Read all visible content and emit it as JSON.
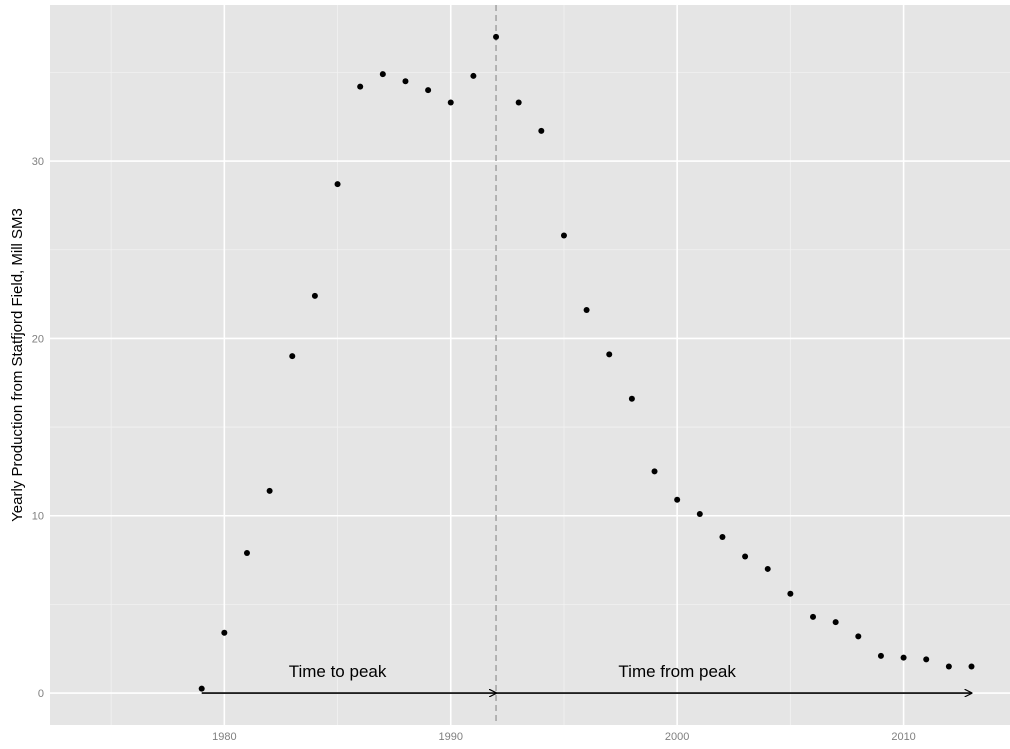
{
  "chart_data": {
    "type": "scatter",
    "title": "",
    "xlabel": "",
    "ylabel": "Yearly Production from Statfjord Field, Mill SM3",
    "xlim": [
      1972.3,
      2014.7
    ],
    "ylim": [
      -1.8,
      38.8
    ],
    "xticks": [
      1980,
      1990,
      2000,
      2010
    ],
    "xtick_labels": [
      "1980",
      "1990",
      "2000",
      "2010"
    ],
    "yticks": [
      0,
      10,
      20,
      30
    ],
    "ytick_labels": [
      "0",
      "10",
      "20",
      "30"
    ],
    "grid": true,
    "legend": "none",
    "series": [
      {
        "x": [
          1979,
          1980,
          1981,
          1982,
          1983,
          1984,
          1985,
          1986,
          1987,
          1988,
          1989,
          1990,
          1991,
          1992,
          1993,
          1994,
          1995,
          1996,
          1997,
          1998,
          1999,
          2000,
          2001,
          2002,
          2003,
          2004,
          2005,
          2006,
          2007,
          2008,
          2009,
          2010,
          2011,
          2012,
          2013
        ],
        "y": [
          0.25,
          3.4,
          7.9,
          11.4,
          19.0,
          22.4,
          28.7,
          34.2,
          34.9,
          34.5,
          34.0,
          33.3,
          34.8,
          37.0,
          33.3,
          31.7,
          25.8,
          21.6,
          19.1,
          16.6,
          12.5,
          10.9,
          10.1,
          8.8,
          7.7,
          7.0,
          5.6,
          4.3,
          4.0,
          3.2,
          2.1,
          2.0,
          1.9,
          1.5,
          1.5
        ]
      }
    ],
    "peak_line": {
      "x": 1992
    },
    "annotations": [
      {
        "text": "Time to peak",
        "x": 1985,
        "y": 0.9,
        "arrow_from": 1979,
        "arrow_to": 1992,
        "arrow_y": 0
      },
      {
        "text": "Time from peak",
        "x": 2000,
        "y": 0.9,
        "arrow_from": 1992,
        "arrow_to": 2013,
        "arrow_y": 0
      }
    ],
    "colors": {
      "panel_background": "#e5e5e5",
      "major_grid": "#ffffff",
      "minor_grid": "#f2f2f2",
      "points": "#000000",
      "peak_line": "#a6a6a6",
      "arrows": "#000000",
      "tick_labels": "#7f7f7f"
    }
  }
}
